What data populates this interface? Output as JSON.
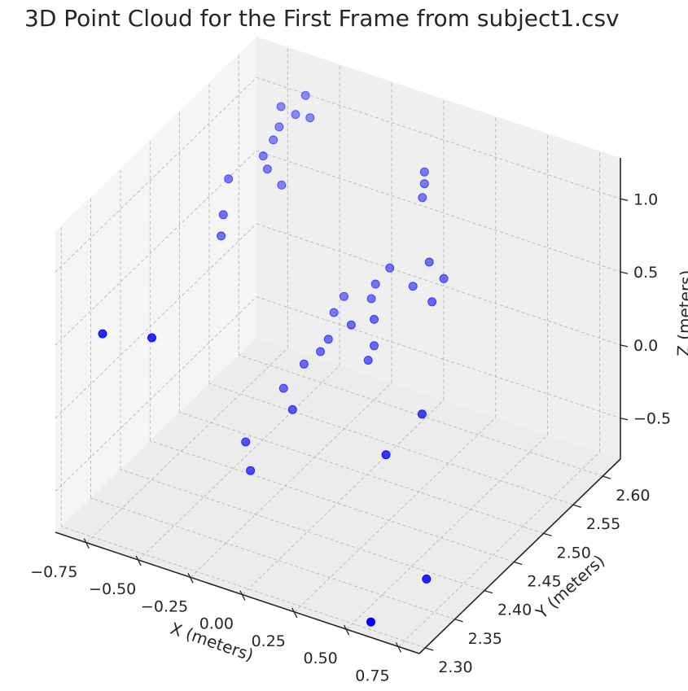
{
  "chart_data": {
    "type": "scatter",
    "title": "3D Point Cloud for the First Frame from subject1.csv",
    "xlabel": "X (meters)",
    "ylabel": "Y (meters)",
    "zlabel": "Z (meters)",
    "xlim": [
      -0.9,
      0.85
    ],
    "ylim": [
      2.29,
      2.63
    ],
    "zlim": [
      -0.78,
      1.28
    ],
    "xticks": [
      "−0.75",
      "−0.50",
      "−0.25",
      "0.00",
      "0.25",
      "0.50",
      "0.75"
    ],
    "yticks": [
      "2.30",
      "2.35",
      "2.40",
      "2.45",
      "2.50",
      "2.55",
      "2.60"
    ],
    "zticks": [
      "−0.5",
      "0.0",
      "0.5",
      "1.0"
    ],
    "grid": true,
    "point_color": "#0000ff",
    "series": [
      {
        "points": [
          {
            "x": 0.05,
            "y": 2.58,
            "z": 1.0
          },
          {
            "x": 0.05,
            "y": 2.58,
            "z": 0.92
          },
          {
            "x": 0.04,
            "y": 2.58,
            "z": 0.82
          },
          {
            "x": 0.13,
            "y": 2.56,
            "z": 0.5
          },
          {
            "x": 0.08,
            "y": 2.55,
            "z": 0.35
          },
          {
            "x": -0.06,
            "y": 2.56,
            "z": 0.37
          },
          {
            "x": -0.1,
            "y": 2.55,
            "z": 0.28
          },
          {
            "x": -0.12,
            "y": 2.55,
            "z": 0.17
          },
          {
            "x": -0.05,
            "y": 2.53,
            "z": 0.14
          },
          {
            "x": -0.16,
            "y": 2.53,
            "z": 0.05
          },
          {
            "x": -0.28,
            "y": 2.56,
            "z": 0.07
          },
          {
            "x": -0.3,
            "y": 2.55,
            "z": -0.01
          },
          {
            "x": -0.05,
            "y": 2.53,
            "z": -0.04
          },
          {
            "x": -0.05,
            "y": 2.52,
            "z": -0.1
          },
          {
            "x": -0.27,
            "y": 2.53,
            "z": -0.1
          },
          {
            "x": -0.28,
            "y": 2.52,
            "z": -0.15
          },
          {
            "x": -0.33,
            "y": 2.51,
            "z": -0.22
          },
          {
            "x": -0.4,
            "y": 2.5,
            "z": -0.38
          },
          {
            "x": -0.3,
            "y": 2.48,
            "z": -0.4
          },
          {
            "x": -0.44,
            "y": 2.45,
            "z": -0.57
          },
          {
            "x": -0.36,
            "y": 2.43,
            "z": -0.65
          },
          {
            "x": 0.38,
            "y": 2.46,
            "z": -0.03
          },
          {
            "x": 0.32,
            "y": 2.42,
            "z": -0.18
          },
          {
            "x": 0.6,
            "y": 2.39,
            "z": -0.78
          },
          {
            "x": 0.56,
            "y": 2.31,
            "z": -0.78
          },
          {
            "x": 0.2,
            "y": 2.56,
            "z": 0.42
          },
          {
            "x": 0.2,
            "y": 2.54,
            "z": 0.34
          },
          {
            "x": -0.55,
            "y": 2.59,
            "z": 1.2
          },
          {
            "x": -0.57,
            "y": 2.58,
            "z": 1.1
          },
          {
            "x": -0.5,
            "y": 2.58,
            "z": 1.11
          },
          {
            "x": -0.64,
            "y": 2.58,
            "z": 1.12
          },
          {
            "x": -0.62,
            "y": 2.57,
            "z": 1.03
          },
          {
            "x": -0.62,
            "y": 2.56,
            "z": 0.98
          },
          {
            "x": -0.64,
            "y": 2.55,
            "z": 0.9
          },
          {
            "x": -0.62,
            "y": 2.55,
            "z": 0.82
          },
          {
            "x": -0.58,
            "y": 2.56,
            "z": 0.69
          },
          {
            "x": -0.75,
            "y": 2.53,
            "z": 0.77
          },
          {
            "x": -0.69,
            "y": 2.5,
            "z": 0.67
          },
          {
            "x": -0.7,
            "y": 2.5,
            "z": 0.52
          },
          {
            "x": -0.73,
            "y": 2.31,
            "z": 0.58
          },
          {
            "x": -0.55,
            "y": 2.33,
            "z": 0.56
          }
        ]
      }
    ]
  }
}
